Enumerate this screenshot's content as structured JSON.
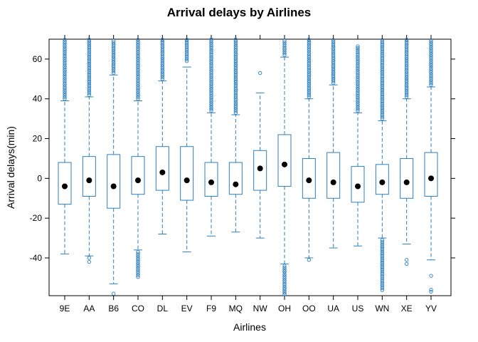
{
  "chart_data": {
    "type": "boxplot",
    "title": "Arrival delays by Airlines",
    "xlabel": "Airlines",
    "ylabel": "Arrival delays(min)",
    "ylim": [
      -59,
      70
    ],
    "yticks": [
      -40,
      -20,
      0,
      20,
      40,
      60
    ],
    "grid": false,
    "categories": [
      "9E",
      "AA",
      "B6",
      "CO",
      "DL",
      "EV",
      "F9",
      "MQ",
      "NW",
      "OH",
      "OO",
      "UA",
      "US",
      "WN",
      "XE",
      "YV"
    ],
    "boxes": [
      {
        "min": -38,
        "q1": -13,
        "median": -4,
        "q3": 8,
        "max": 39,
        "outliers_high_from": 40,
        "outliers_low": []
      },
      {
        "min": -39,
        "q1": -9,
        "median": -1,
        "q3": 11,
        "max": 41,
        "outliers_high_from": 42,
        "outliers_low": [
          -40,
          -42
        ]
      },
      {
        "min": -53,
        "q1": -15,
        "median": -4,
        "q3": 12,
        "max": 52,
        "outliers_high_from": 53,
        "outliers_low": [
          -58
        ]
      },
      {
        "min": -36,
        "q1": -8,
        "median": -1,
        "q3": 11,
        "max": 39,
        "outliers_high_from": 40,
        "outliers_low_from": -37,
        "outliers_low_to": -50
      },
      {
        "min": -28,
        "q1": -6,
        "median": 3,
        "q3": 16,
        "max": 49,
        "outliers_high_from": 50,
        "outliers_low": []
      },
      {
        "min": -37,
        "q1": -11,
        "median": -1,
        "q3": 16,
        "max": 56,
        "outliers_high_from": 59,
        "outliers_low": []
      },
      {
        "min": -29,
        "q1": -9,
        "median": -2,
        "q3": 8,
        "max": 33,
        "outliers_high_from": 34,
        "outliers_low": []
      },
      {
        "min": -27,
        "q1": -8,
        "median": -3,
        "q3": 8,
        "max": 32,
        "outliers_high_from": 33,
        "outliers_low": []
      },
      {
        "min": -30,
        "q1": -6,
        "median": 5,
        "q3": 14,
        "max": 43,
        "outliers_high_from": 53,
        "outliers_high_to": 53,
        "outliers_low": []
      },
      {
        "min": -43,
        "q1": -4,
        "median": 7,
        "q3": 22,
        "max": 61,
        "outliers_high_from": 62,
        "outliers_low_from": -44,
        "outliers_low_to": -59
      },
      {
        "min": -40,
        "q1": -10,
        "median": -1,
        "q3": 10,
        "max": 40,
        "outliers_high_from": 41,
        "outliers_low": [
          -41
        ]
      },
      {
        "min": -35,
        "q1": -10,
        "median": -2,
        "q3": 13,
        "max": 47,
        "outliers_high_from": 48,
        "outliers_low": []
      },
      {
        "min": -34,
        "q1": -12,
        "median": -4,
        "q3": 6,
        "max": 33,
        "outliers_high_from": 34,
        "outliers_high_to": 67,
        "outliers_low": []
      },
      {
        "min": -30,
        "q1": -8,
        "median": -2,
        "q3": 7,
        "max": 29,
        "outliers_high_from": 30,
        "outliers_low_from": -31,
        "outliers_low_to": -57
      },
      {
        "min": -33,
        "q1": -10,
        "median": -2,
        "q3": 10,
        "max": 40,
        "outliers_high_from": 41,
        "outliers_low": [
          -41,
          -43
        ]
      },
      {
        "min": -41,
        "q1": -9,
        "median": 0,
        "q3": 13,
        "max": 46,
        "outliers_high_from": 47,
        "outliers_low": [
          -49,
          -56,
          -57
        ]
      }
    ],
    "colors": {
      "box": "#2b7fc1",
      "median": "#000000",
      "frame": "#000000"
    }
  }
}
